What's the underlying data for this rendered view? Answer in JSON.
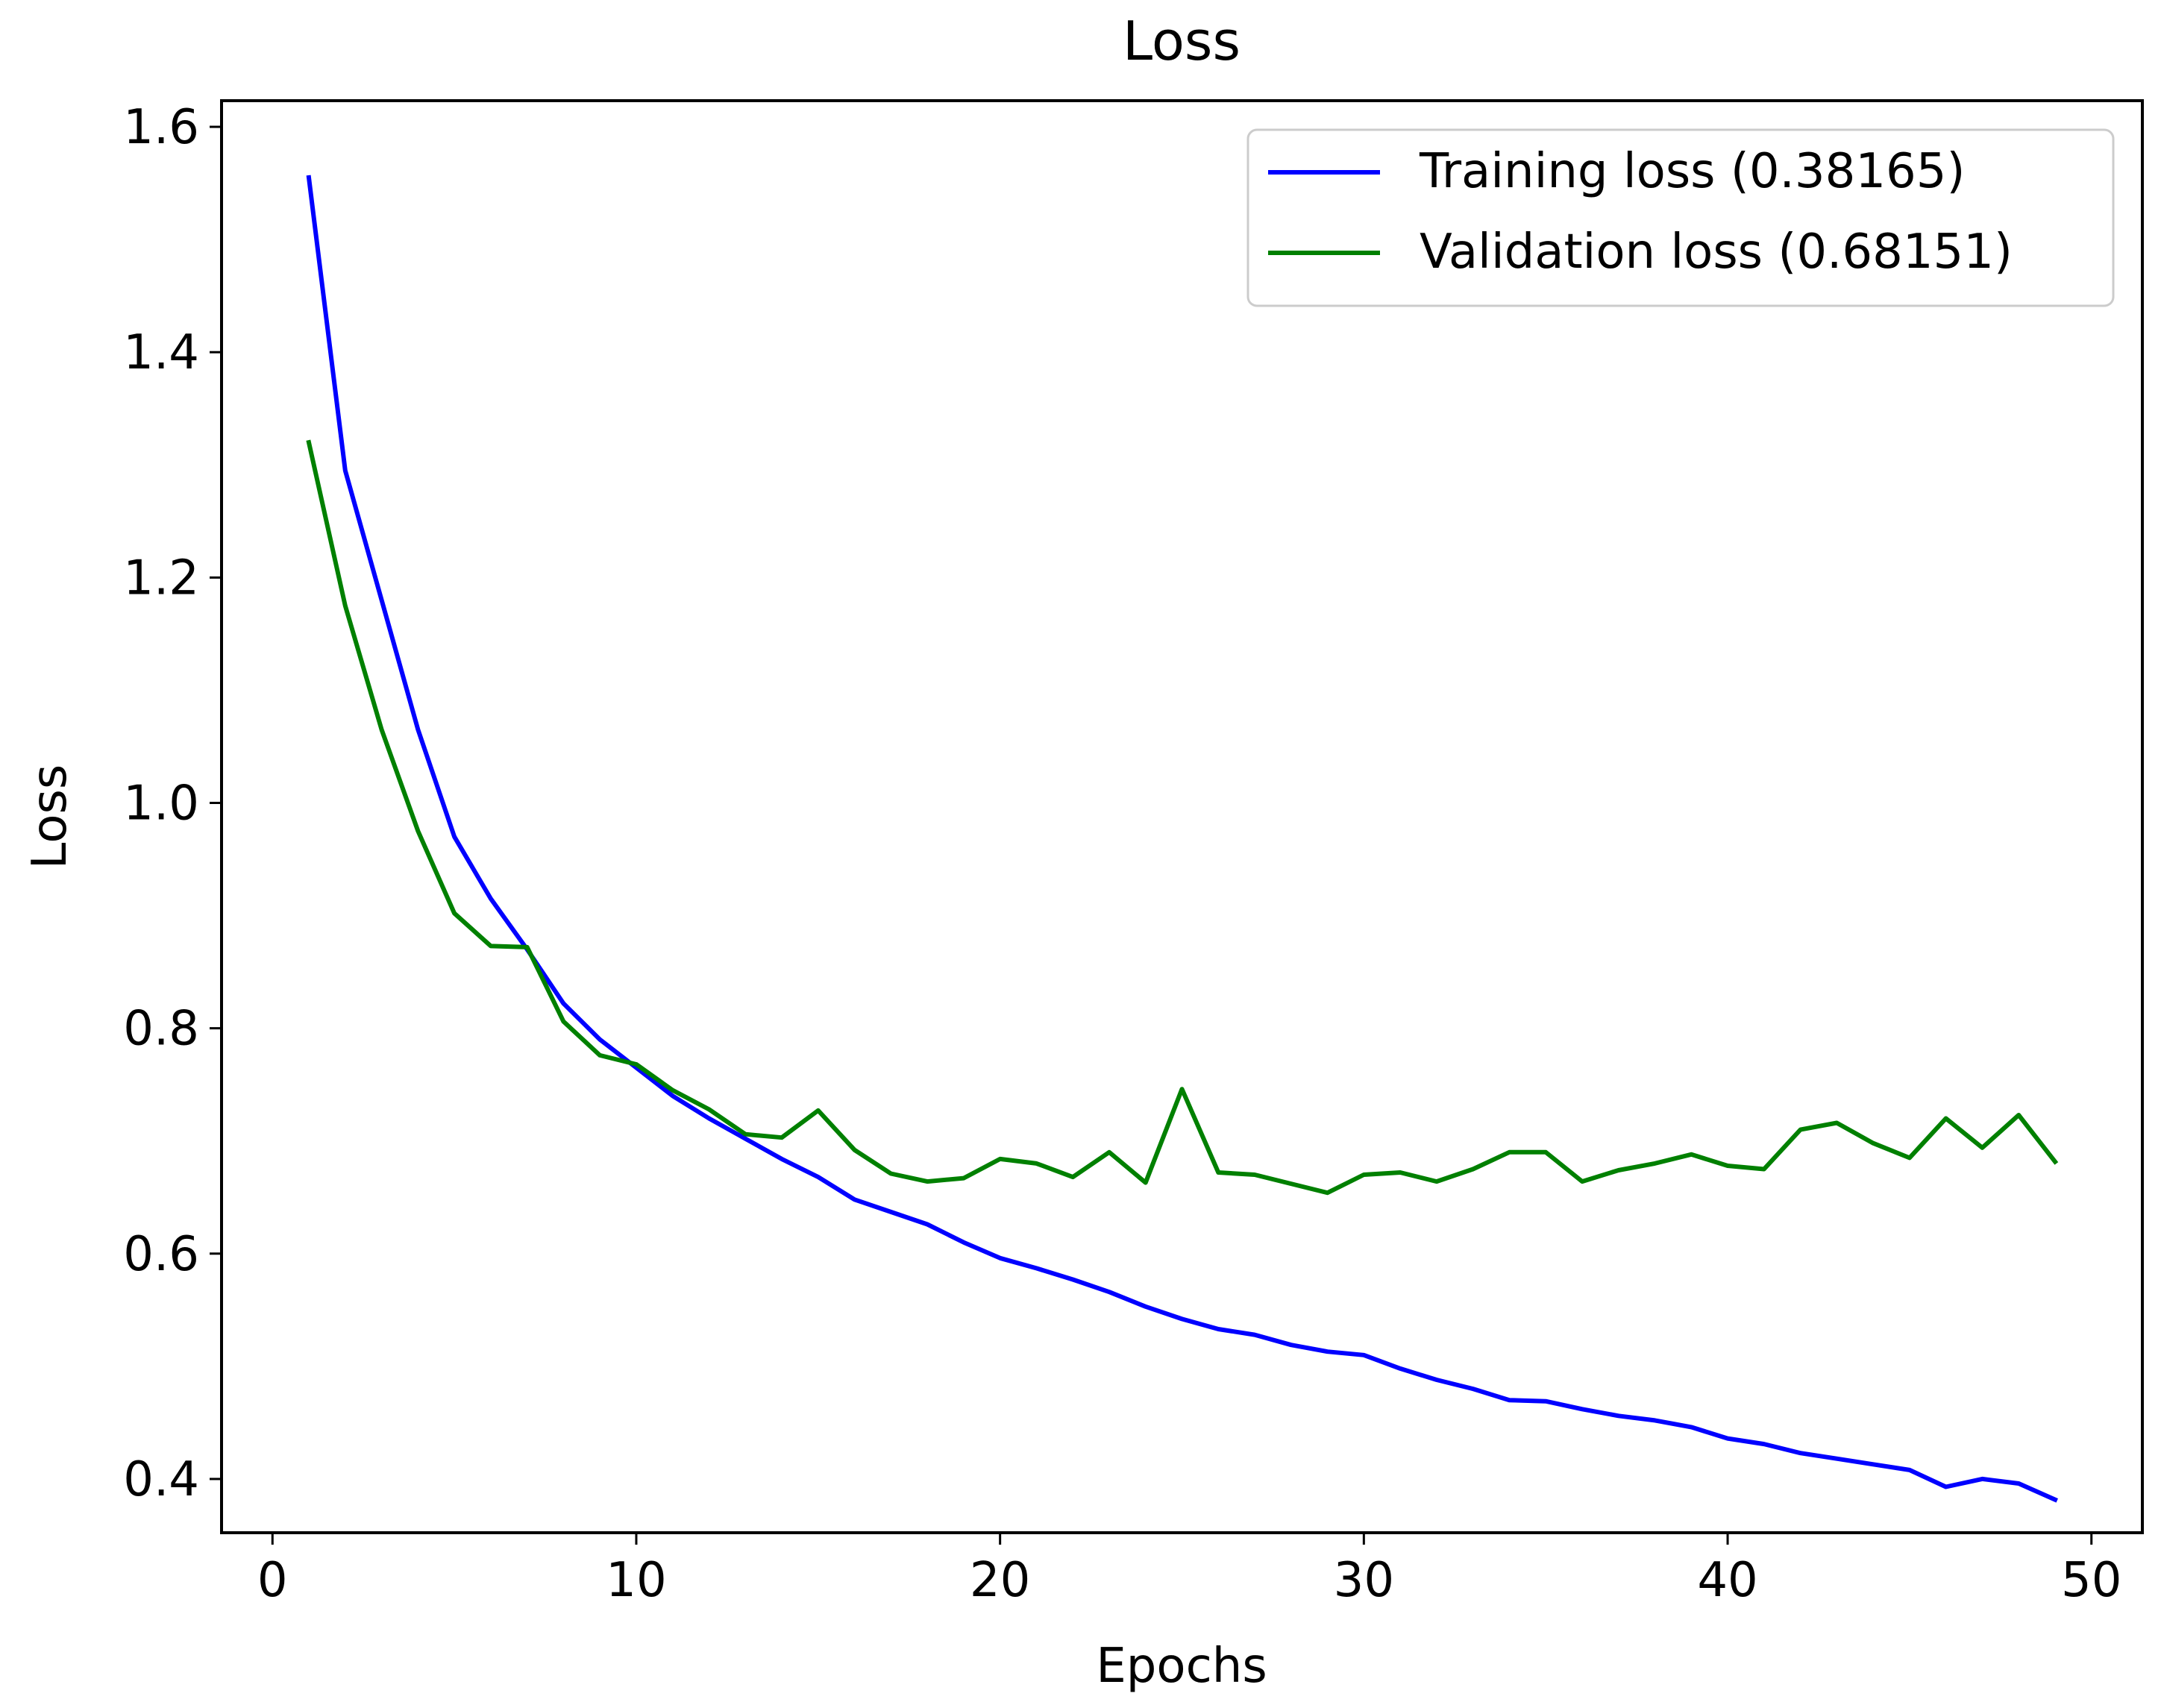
{
  "chart_data": {
    "type": "line",
    "title": "Loss",
    "xlabel": "Epochs",
    "ylabel": "Loss",
    "xlim": [
      -1.4,
      51.4
    ],
    "ylim": [
      0.3523,
      1.6232
    ],
    "xticks": [
      0,
      10,
      20,
      30,
      40,
      50
    ],
    "yticks": [
      0.4,
      0.6,
      0.8,
      1.0,
      1.2,
      1.4,
      1.6
    ],
    "xtick_labels": [
      "0",
      "10",
      "20",
      "30",
      "40",
      "50"
    ],
    "ytick_labels": [
      "0.4",
      "0.6",
      "0.8",
      "1.0",
      "1.2",
      "1.4",
      "1.6"
    ],
    "grid": false,
    "legend_position": "top-right",
    "x": [
      1,
      2,
      3,
      4,
      5,
      6,
      7,
      8,
      9,
      10,
      11,
      12,
      13,
      14,
      15,
      16,
      17,
      18,
      19,
      20,
      21,
      22,
      23,
      24,
      25,
      26,
      27,
      28,
      29,
      30,
      31,
      32,
      33,
      34,
      35,
      36,
      37,
      38,
      39,
      40,
      41,
      42,
      43,
      44,
      45,
      46,
      47,
      48,
      49
    ],
    "series": [
      {
        "name": "Training loss (0.38165)",
        "color": "#0000ff",
        "values": [
          1.555,
          1.295,
          1.18,
          1.065,
          0.97,
          0.915,
          0.87,
          0.822,
          0.79,
          0.765,
          0.74,
          0.72,
          0.702,
          0.684,
          0.668,
          0.648,
          0.637,
          0.626,
          0.61,
          0.596,
          0.587,
          0.577,
          0.566,
          0.553,
          0.542,
          0.533,
          0.528,
          0.519,
          0.513,
          0.51,
          0.498,
          0.488,
          0.48,
          0.47,
          0.469,
          0.462,
          0.456,
          0.452,
          0.446,
          0.436,
          0.431,
          0.423,
          0.418,
          0.413,
          0.408,
          0.393,
          0.4,
          0.396,
          0.38165
        ]
      },
      {
        "name": "Validation loss (0.68151)",
        "color": "#008000",
        "values": [
          1.32,
          1.175,
          1.065,
          0.975,
          0.902,
          0.873,
          0.872,
          0.806,
          0.776,
          0.768,
          0.745,
          0.728,
          0.706,
          0.703,
          0.727,
          0.692,
          0.671,
          0.664,
          0.667,
          0.684,
          0.68,
          0.668,
          0.69,
          0.663,
          0.746,
          0.672,
          0.67,
          0.662,
          0.654,
          0.67,
          0.672,
          0.664,
          0.675,
          0.69,
          0.69,
          0.664,
          0.674,
          0.68,
          0.688,
          0.678,
          0.675,
          0.71,
          0.716,
          0.698,
          0.685,
          0.72,
          0.694,
          0.723,
          0.68151
        ]
      }
    ]
  }
}
